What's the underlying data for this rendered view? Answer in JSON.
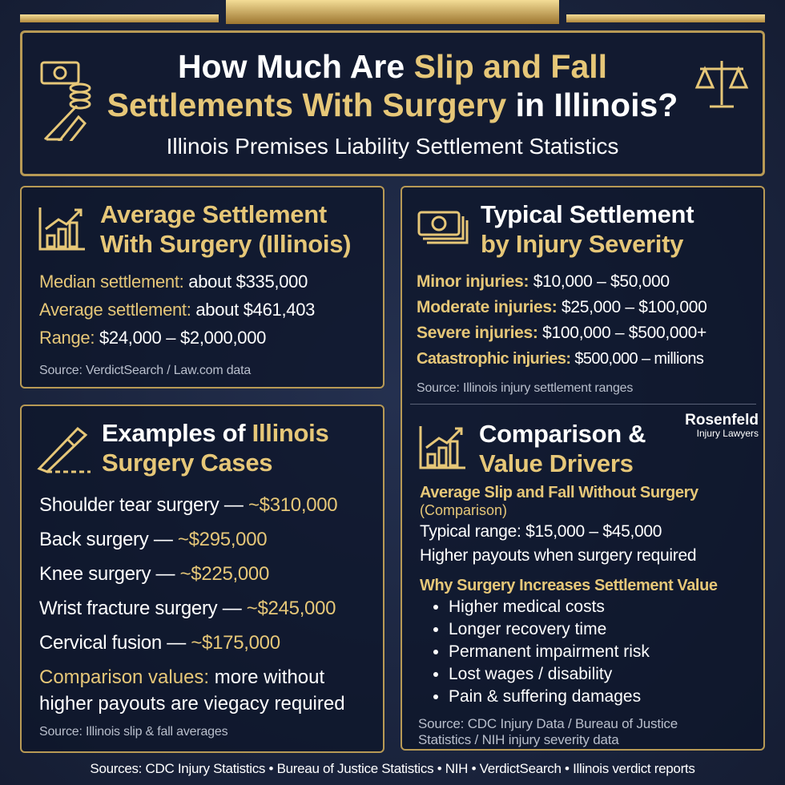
{
  "header": {
    "title_line1": [
      "How Much Are",
      "Slip and Fall"
    ],
    "title_line2": [
      "Settlements With Surgery",
      "in Illinois?"
    ],
    "subtitle": "Illinois Premises Liability Settlement Statistics"
  },
  "average": {
    "title": [
      "Average Settlement",
      "With Surgery (Illinois)"
    ],
    "items": [
      {
        "label": "Median settlement:",
        "value": "about $335,000"
      },
      {
        "label": "Average settlement:",
        "value": "about $461,403"
      },
      {
        "label": "Range:",
        "value": "$24,000 – $2,000,000"
      }
    ],
    "source": "Source: VerdictSearch / Law.com data"
  },
  "severity": {
    "title": [
      "Typical Settlement",
      "by Injury Severity"
    ],
    "items": [
      {
        "label": "Minor injuries:",
        "value": "$10,000 – $50,000"
      },
      {
        "label": "Moderate injuries:",
        "value": "$25,000 – $100,000"
      },
      {
        "label": "Severe injuries:",
        "value": "$100,000 – $500,000+"
      },
      {
        "label": "Catastrophic injuries:",
        "value": "$500,000 – millions"
      }
    ],
    "source": "Source: Illinois injury settlement ranges"
  },
  "examples": {
    "title": [
      "Examples of",
      "Illinois",
      "Surgery Cases"
    ],
    "items": [
      {
        "case": "Shoulder tear surgery —",
        "amount": "~$310,000"
      },
      {
        "case": "Back surgery —",
        "amount": "~$295,000"
      },
      {
        "case": "Knee surgery —",
        "amount": "~$225,000"
      },
      {
        "case": "Wrist fracture surgery —",
        "amount": "~$245,000"
      },
      {
        "case": "Cervical fusion —",
        "amount": "~$175,000"
      }
    ],
    "comparison": {
      "label": "Comparison values:",
      "text": "more without higher payouts are viegacy required"
    },
    "source": "Source: Illinois slip & fall averages"
  },
  "comparison": {
    "logo": {
      "name": "Rosenfeld",
      "tagline": "Injury Lawyers"
    },
    "title": [
      "Comparison &",
      "Value Drivers"
    ],
    "without_surgery": {
      "heading": "Average Slip and Fall Without Surgery",
      "note": "(Comparison)",
      "lines": [
        "Typical range: $15,000 – $45,000",
        "Higher payouts when surgery required"
      ]
    },
    "why": {
      "heading": "Why Surgery Increases Settlement Value",
      "bullets": [
        "Higher medical costs",
        "Longer recovery time",
        "Permanent impairment risk",
        "Lost wages / disability",
        "Pain & suffering damages"
      ]
    },
    "source": "Source: CDC Injury Data / Bureau of Justice Statistics / NIH injury severity data"
  },
  "footer": "Sources: CDC Injury Statistics • Bureau of Justice Statistics • NIH • VerdictSearch • Illinois verdict reports"
}
